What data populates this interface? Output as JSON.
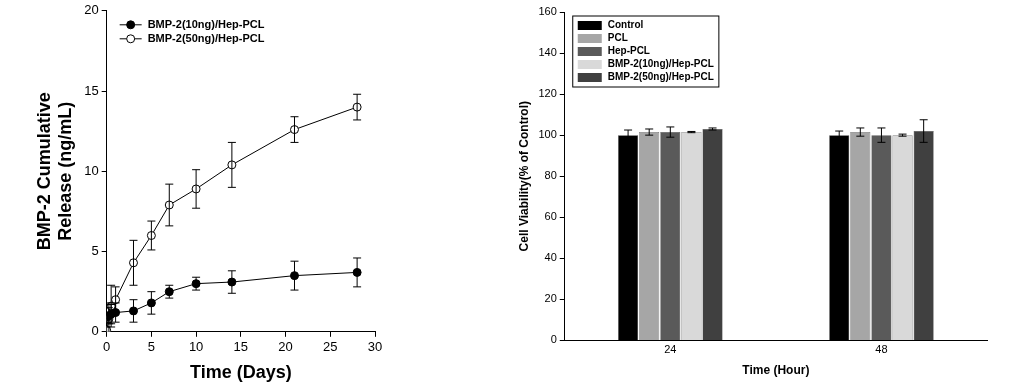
{
  "chart_data": [
    {
      "type": "line",
      "x_label": "Time (Days)",
      "y_label": "BMP-2 Cumulative Release (ng/mL)",
      "x": [
        0,
        0.25,
        0.5,
        1,
        3,
        5,
        7,
        10,
        14,
        21,
        28
      ],
      "series": [
        {
          "name": "BMP-2(10ng)/Hep-PCL",
          "color": "#000000",
          "marker": "circle",
          "values": [
            0.9,
            1.0,
            1.1,
            1.2,
            1.3,
            1.8,
            2.5,
            3.0,
            3.1,
            3.5,
            3.7
          ],
          "errors": [
            0.3,
            0.5,
            0.6,
            0.6,
            0.7,
            0.7,
            0.4,
            0.4,
            0.7,
            0.9,
            0.9
          ]
        },
        {
          "name": "BMP-2(50ng)/Hep-PCL",
          "color": "#000000",
          "marker": "open_circle",
          "values": [
            0.1,
            0.8,
            1.6,
            2.0,
            4.3,
            6.0,
            7.9,
            8.9,
            10.4,
            12.6,
            14.0
          ],
          "errors": [
            0.2,
            1.0,
            1.3,
            0.8,
            1.4,
            0.9,
            1.3,
            1.2,
            1.4,
            0.8,
            0.8
          ]
        }
      ],
      "xlim": [
        0,
        30
      ],
      "xticks": [
        0,
        5,
        10,
        15,
        20,
        25,
        30
      ],
      "ylim": [
        0,
        20
      ],
      "yticks": [
        0,
        5,
        10,
        15,
        20
      ],
      "grid": false,
      "legend": "upper left"
    },
    {
      "type": "bar",
      "x_label": "Time (Hour)",
      "y_label": "Cell Viability(% of Control)",
      "categories": [
        "24",
        "48"
      ],
      "series": [
        {
          "name": "Control",
          "color": "#000000",
          "values": [
            100,
            100
          ],
          "errors": [
            2.5,
            2
          ]
        },
        {
          "name": "PCL",
          "color": "#a6a6a6",
          "values": [
            101.5,
            101.5
          ],
          "errors": [
            1.5,
            2
          ]
        },
        {
          "name": "Hep-PCL",
          "color": "#5a5a5a",
          "values": [
            101.5,
            100
          ],
          "errors": [
            2.5,
            3.5
          ]
        },
        {
          "name": "BMP-2(10ng)/Hep-PCL",
          "color": "#d9d9d9",
          "values": [
            101.5,
            100
          ],
          "errors": [
            0.3,
            0.5
          ]
        },
        {
          "name": "BMP-2(50ng)/Hep-PCL",
          "color": "#404040",
          "values": [
            103,
            102
          ],
          "errors": [
            0.5,
            5.5
          ]
        }
      ],
      "ylim": [
        0,
        160
      ],
      "yticks": [
        0,
        20,
        40,
        60,
        80,
        100,
        120,
        140,
        160
      ],
      "grid": false,
      "legend": "upper left"
    }
  ]
}
